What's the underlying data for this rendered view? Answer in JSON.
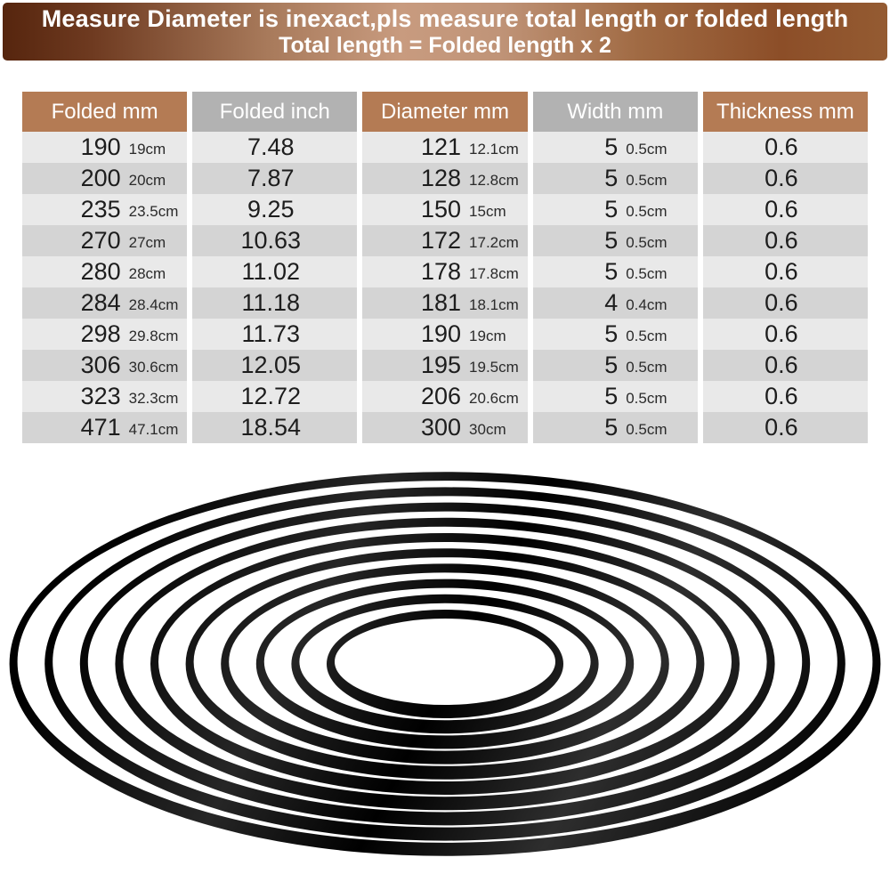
{
  "banner": {
    "line1": "Measure Diameter is inexact,pls measure total length or folded length",
    "line2": "Total length = Folded length x 2"
  },
  "table": {
    "headers": [
      "Folded mm",
      "Folded inch",
      "Diameter mm",
      "Width mm",
      "Thickness mm"
    ],
    "rows": [
      {
        "folded_mm": "190",
        "folded_cm": "19cm",
        "folded_inch": "7.48",
        "diameter_mm": "121",
        "diameter_cm": "12.1cm",
        "width_mm": "5",
        "width_cm": "0.5cm",
        "thickness_mm": "0.6"
      },
      {
        "folded_mm": "200",
        "folded_cm": "20cm",
        "folded_inch": "7.87",
        "diameter_mm": "128",
        "diameter_cm": "12.8cm",
        "width_mm": "5",
        "width_cm": "0.5cm",
        "thickness_mm": "0.6"
      },
      {
        "folded_mm": "235",
        "folded_cm": "23.5cm",
        "folded_inch": "9.25",
        "diameter_mm": "150",
        "diameter_cm": "15cm",
        "width_mm": "5",
        "width_cm": "0.5cm",
        "thickness_mm": "0.6"
      },
      {
        "folded_mm": "270",
        "folded_cm": "27cm",
        "folded_inch": "10.63",
        "diameter_mm": "172",
        "diameter_cm": "17.2cm",
        "width_mm": "5",
        "width_cm": "0.5cm",
        "thickness_mm": "0.6"
      },
      {
        "folded_mm": "280",
        "folded_cm": "28cm",
        "folded_inch": "11.02",
        "diameter_mm": "178",
        "diameter_cm": "17.8cm",
        "width_mm": "5",
        "width_cm": "0.5cm",
        "thickness_mm": "0.6"
      },
      {
        "folded_mm": "284",
        "folded_cm": "28.4cm",
        "folded_inch": "11.18",
        "diameter_mm": "181",
        "diameter_cm": "18.1cm",
        "width_mm": "4",
        "width_cm": "0.4cm",
        "thickness_mm": "0.6"
      },
      {
        "folded_mm": "298",
        "folded_cm": "29.8cm",
        "folded_inch": "11.73",
        "diameter_mm": "190",
        "diameter_cm": "19cm",
        "width_mm": "5",
        "width_cm": "0.5cm",
        "thickness_mm": "0.6"
      },
      {
        "folded_mm": "306",
        "folded_cm": "30.6cm",
        "folded_inch": "12.05",
        "diameter_mm": "195",
        "diameter_cm": "19.5cm",
        "width_mm": "5",
        "width_cm": "0.5cm",
        "thickness_mm": "0.6"
      },
      {
        "folded_mm": "323",
        "folded_cm": "32.3cm",
        "folded_inch": "12.72",
        "diameter_mm": "206",
        "diameter_cm": "20.6cm",
        "width_mm": "5",
        "width_cm": "0.5cm",
        "thickness_mm": "0.6"
      },
      {
        "folded_mm": "471",
        "folded_cm": "47.1cm",
        "folded_inch": "18.54",
        "diameter_mm": "300",
        "diameter_cm": "30cm",
        "width_mm": "5",
        "width_cm": "0.5cm",
        "thickness_mm": "0.6"
      }
    ]
  },
  "chart_data": {
    "type": "table",
    "title": "Rubber belt size chart",
    "columns": [
      "Folded mm",
      "Folded inch",
      "Diameter mm",
      "Width mm",
      "Thickness mm"
    ],
    "rows": [
      [
        "190 (19cm)",
        "7.48",
        "121 (12.1cm)",
        "5 (0.5cm)",
        "0.6"
      ],
      [
        "200 (20cm)",
        "7.87",
        "128 (12.8cm)",
        "5 (0.5cm)",
        "0.6"
      ],
      [
        "235 (23.5cm)",
        "9.25",
        "150 (15cm)",
        "5 (0.5cm)",
        "0.6"
      ],
      [
        "270 (27cm)",
        "10.63",
        "172 (17.2cm)",
        "5 (0.5cm)",
        "0.6"
      ],
      [
        "280 (28cm)",
        "11.02",
        "178 (17.8cm)",
        "5 (0.5cm)",
        "0.6"
      ],
      [
        "284 (28.4cm)",
        "11.18",
        "181 (18.1cm)",
        "4 (0.4cm)",
        "0.6"
      ],
      [
        "298 (29.8cm)",
        "11.73",
        "190 (19cm)",
        "5 (0.5cm)",
        "0.6"
      ],
      [
        "306 (30.6cm)",
        "12.05",
        "195 (19.5cm)",
        "5 (0.5cm)",
        "0.6"
      ],
      [
        "323 (32.3cm)",
        "12.72",
        "206 (20.6cm)",
        "5 (0.5cm)",
        "0.6"
      ],
      [
        "471 (47.1cm)",
        "18.54",
        "300 (30cm)",
        "5 (0.5cm)",
        "0.6"
      ]
    ]
  },
  "illustration": {
    "name": "stacked-rubber-drive-belts",
    "ring_count": 10
  },
  "colors": {
    "header_brown": "#b47b54",
    "header_gray": "#b2b2b2",
    "row_light": "#e9e9e9",
    "row_dark": "#d4d4d4",
    "banner_left": "#56250e",
    "banner_center": "#c89b7f",
    "banner_right": "#8c4e28",
    "ring_black": "#0a0a0a",
    "text_dark": "#1d1d1d",
    "text_white": "#ffffff"
  }
}
